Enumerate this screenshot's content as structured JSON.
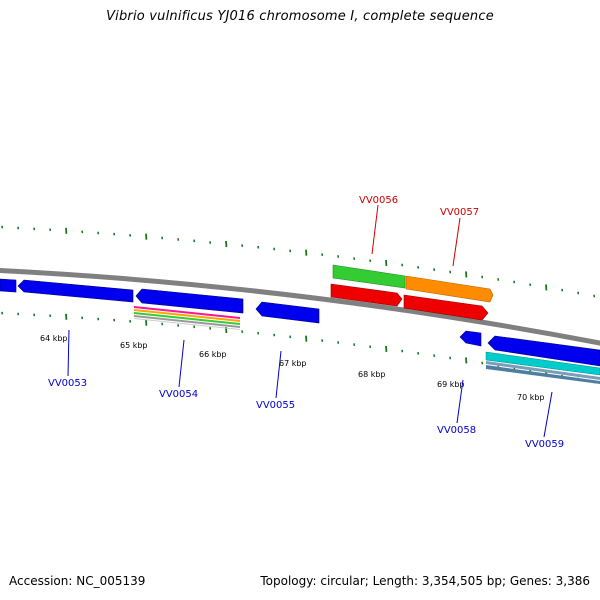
{
  "title": "Vibrio vulnificus YJ016 chromosome I, complete sequence",
  "footer": {
    "accession": "Accession: NC_005139",
    "topology": "Topology: circular; Length: 3,354,505 bp; Genes: 3,386"
  },
  "colors": {
    "backbone": "#808080",
    "tick": "#1a7a1a",
    "forward_label": "#cc0000",
    "reverse_label": "#0000cc",
    "gene_blue": "#0000ee",
    "gene_green": "#33cc33",
    "gene_orange": "#ff8c00",
    "gene_red": "#ee0000",
    "gene_cyan": "#00cccc",
    "gene_steel": "#5f8fb0"
  },
  "tick_labels": [
    "64 kbp",
    "65 kbp",
    "66 kbp",
    "67 kbp",
    "68 kbp",
    "69 kbp",
    "70 kbp"
  ],
  "genes": {
    "forward": [
      "VV0056",
      "VV0057"
    ],
    "reverse": [
      "VV0053",
      "VV0054",
      "VV0055",
      "VV0058",
      "VV0059"
    ]
  }
}
